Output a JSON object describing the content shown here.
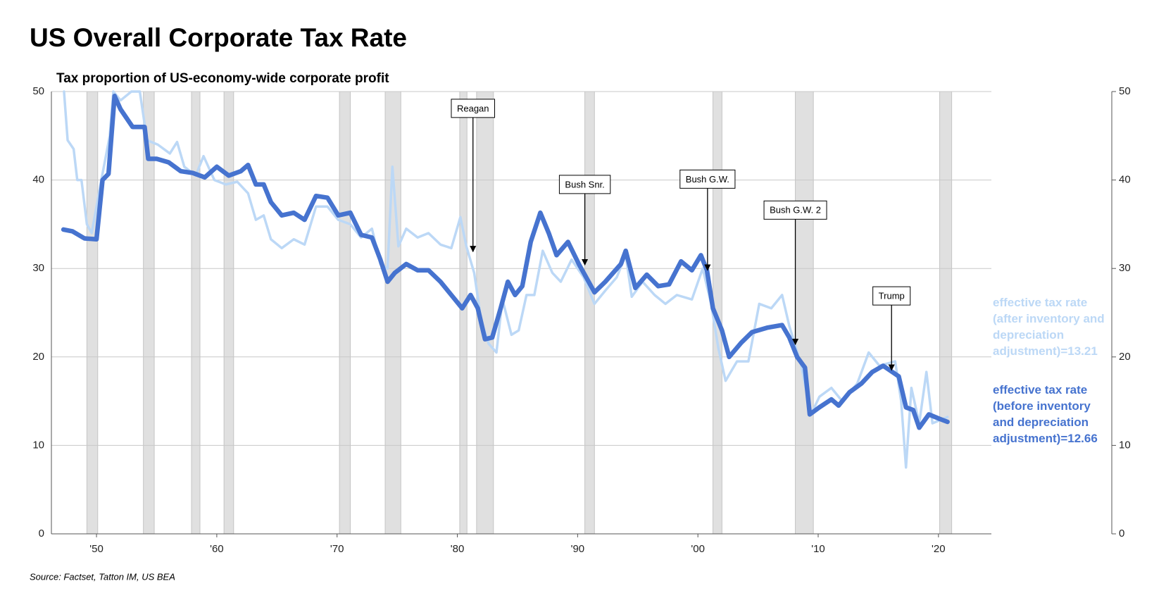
{
  "chart_data": {
    "type": "line",
    "title": "US Overall Corporate Tax Rate",
    "subtitle": "Tax proportion of US-economy-wide corporate profit",
    "source": "Source: Factset, Tatton IM, US BEA",
    "xlim": [
      1946.25,
      2024.4
    ],
    "xticks": [
      {
        "value": 1950,
        "label": "'50"
      },
      {
        "value": 1960,
        "label": "'60"
      },
      {
        "value": 1970,
        "label": "'70"
      },
      {
        "value": 1980,
        "label": "'80"
      },
      {
        "value": 1990,
        "label": "'90"
      },
      {
        "value": 2000,
        "label": "'00"
      },
      {
        "value": 2010,
        "label": "'10"
      },
      {
        "value": 2020,
        "label": "'20"
      }
    ],
    "ylim": [
      0,
      50
    ],
    "yticks": [
      0,
      10,
      20,
      30,
      40,
      50
    ],
    "y2lim": [
      0,
      50
    ],
    "y2ticks": [
      0,
      10,
      20,
      30,
      40,
      50
    ],
    "grid": true,
    "recession_color": "#e0e0e0",
    "recessions": [
      [
        1949.2,
        1950.1
      ],
      [
        1953.9,
        1954.8
      ],
      [
        1957.9,
        1958.6
      ],
      [
        1960.6,
        1961.4
      ],
      [
        1970.2,
        1971.1
      ],
      [
        1974.0,
        1975.3
      ],
      [
        1980.2,
        1980.8
      ],
      [
        1981.6,
        1983.0
      ],
      [
        1990.6,
        1991.4
      ],
      [
        2001.25,
        2002.0
      ],
      [
        2008.1,
        2009.6
      ],
      [
        2020.1,
        2021.1
      ]
    ],
    "series": [
      {
        "name": "effective tax rate (after inventory and depreciation adjustment)=13.21",
        "color": "#bcd8f6",
        "x": [
          1947.3,
          1947.6,
          1948.1,
          1948.4,
          1948.75,
          1949.2,
          1949.6,
          1950.4,
          1951.1,
          1951.4,
          1952,
          1952.9,
          1953.6,
          1954.2,
          1955.1,
          1956.1,
          1956.7,
          1957.3,
          1958.25,
          1958.9,
          1959.8,
          1960.75,
          1961.7,
          1962.6,
          1963.25,
          1963.9,
          1964.5,
          1965.4,
          1966.4,
          1967.3,
          1968.25,
          1969.2,
          1970.1,
          1971.1,
          1972,
          1972.9,
          1973.6,
          1974.2,
          1974.6,
          1975.1,
          1975.75,
          1976.7,
          1977.6,
          1978.6,
          1979.5,
          1980.25,
          1980.75,
          1981.4,
          1982,
          1982.6,
          1983.25,
          1983.75,
          1984.5,
          1985.1,
          1985.75,
          1986.4,
          1987.1,
          1987.9,
          1988.6,
          1989.5,
          1990.5,
          1991.4,
          1992.3,
          1993.25,
          1994,
          1994.5,
          1995.4,
          1996.4,
          1997.3,
          1998.25,
          1999.5,
          2000.4,
          2001.1,
          2001.7,
          2002.3,
          2003.25,
          2004.2,
          2005.1,
          2006.1,
          2007,
          2007.6,
          2008.6,
          2009.4,
          2010.1,
          2011.1,
          2012,
          2013.25,
          2014.2,
          2015.1,
          2016.4,
          2016.9,
          2017.3,
          2017.75,
          2018.4,
          2019,
          2019.5,
          2020.4,
          2020.75
        ],
        "values": [
          50,
          44.5,
          43.5,
          40,
          40,
          35,
          34,
          40,
          45,
          50,
          49,
          50,
          50,
          44.5,
          44,
          43,
          44.3,
          41.5,
          40.5,
          42.7,
          40,
          39.5,
          39.8,
          38.5,
          35.5,
          36,
          33.3,
          32.3,
          33.3,
          32.7,
          37,
          37,
          35.5,
          35,
          33.5,
          34.5,
          30.5,
          30,
          41.5,
          32.5,
          34.5,
          33.5,
          34,
          32.7,
          32.3,
          35.8,
          32.5,
          29.5,
          24,
          21.5,
          20.5,
          26.5,
          22.5,
          23,
          27,
          27,
          32,
          29.5,
          28.5,
          31,
          29,
          26,
          27.5,
          29,
          31.5,
          26.8,
          28.5,
          27,
          26,
          27,
          26.5,
          30,
          26,
          21,
          17.3,
          19.5,
          19.5,
          26,
          25.5,
          27,
          23.5,
          19,
          13.5,
          15.5,
          16.5,
          15,
          17,
          20.5,
          19,
          19.5,
          15,
          7.5,
          16.5,
          12.5,
          18.3,
          12.5,
          13,
          13.21
        ]
      },
      {
        "name": "effective tax rate (before inventory and depreciation adjustment)=12.66",
        "color": "#4673cf",
        "x": [
          1947.25,
          1948,
          1949,
          1950,
          1950.5,
          1951,
          1951.5,
          1952,
          1953,
          1954,
          1954.3,
          1955,
          1956,
          1957,
          1958,
          1959,
          1960,
          1961,
          1962,
          1962.6,
          1963.25,
          1963.9,
          1964.5,
          1965.4,
          1966.4,
          1967.3,
          1968.25,
          1969.2,
          1970.1,
          1971.1,
          1972,
          1972.9,
          1973.6,
          1974.2,
          1974.8,
          1975.75,
          1976.7,
          1977.6,
          1978.6,
          1979.5,
          1980.4,
          1981.1,
          1981.7,
          1982.3,
          1982.9,
          1983.6,
          1984.2,
          1984.8,
          1985.4,
          1986.1,
          1986.9,
          1987.6,
          1988.25,
          1989.2,
          1990.1,
          1991.4,
          1992.3,
          1993.6,
          1994,
          1994.8,
          1995.75,
          1996.7,
          1997.6,
          1998.6,
          1999.5,
          2000.25,
          2000.75,
          2001.25,
          2002,
          2002.6,
          2003.6,
          2004.5,
          2005.75,
          2007,
          2007.6,
          2008.25,
          2008.9,
          2009.3,
          2010.1,
          2011.1,
          2011.7,
          2012.6,
          2013.6,
          2014.5,
          2015.4,
          2016.7,
          2017.3,
          2017.9,
          2018.4,
          2019.2,
          2020.1,
          2020.75
        ],
        "values": [
          34.4,
          34.2,
          33.4,
          33.3,
          40,
          40.7,
          49.5,
          48,
          46,
          46,
          42.4,
          42.4,
          42,
          41,
          40.8,
          40.3,
          41.5,
          40.5,
          41,
          41.7,
          39.5,
          39.5,
          37.5,
          36,
          36.3,
          35.5,
          38.2,
          38,
          36,
          36.3,
          33.8,
          33.5,
          31,
          28.5,
          29.5,
          30.5,
          29.8,
          29.8,
          28.5,
          27,
          25.5,
          27,
          25.5,
          22,
          22.2,
          25.5,
          28.5,
          27,
          28,
          33,
          36.3,
          34,
          31.5,
          33,
          30.5,
          27.3,
          28.5,
          30.5,
          32,
          27.8,
          29.3,
          28,
          28.2,
          30.8,
          29.8,
          31.5,
          29.8,
          25.5,
          23,
          20,
          21.6,
          22.8,
          23.3,
          23.6,
          22.2,
          20,
          18.8,
          13.5,
          14.3,
          15.2,
          14.5,
          16,
          17,
          18.3,
          19,
          17.8,
          14.3,
          14,
          12,
          13.5,
          13,
          12.66
        ]
      }
    ],
    "annotations": [
      {
        "text": "Reagan",
        "x": 1981.3,
        "y": 31.9,
        "ytext": 48.1
      },
      {
        "text": "Bush Snr.",
        "x": 1990.6,
        "y": 30.4,
        "ytext": 39.5
      },
      {
        "text": "Bush G.W.",
        "x": 2000.8,
        "y": 29.8,
        "ytext": 40.1
      },
      {
        "text": "Bush G.W. 2",
        "x": 2008.1,
        "y": 21.4,
        "ytext": 36.6
      },
      {
        "text": "Trump",
        "x": 2016.1,
        "y": 18.5,
        "ytext": 26.9
      }
    ]
  }
}
